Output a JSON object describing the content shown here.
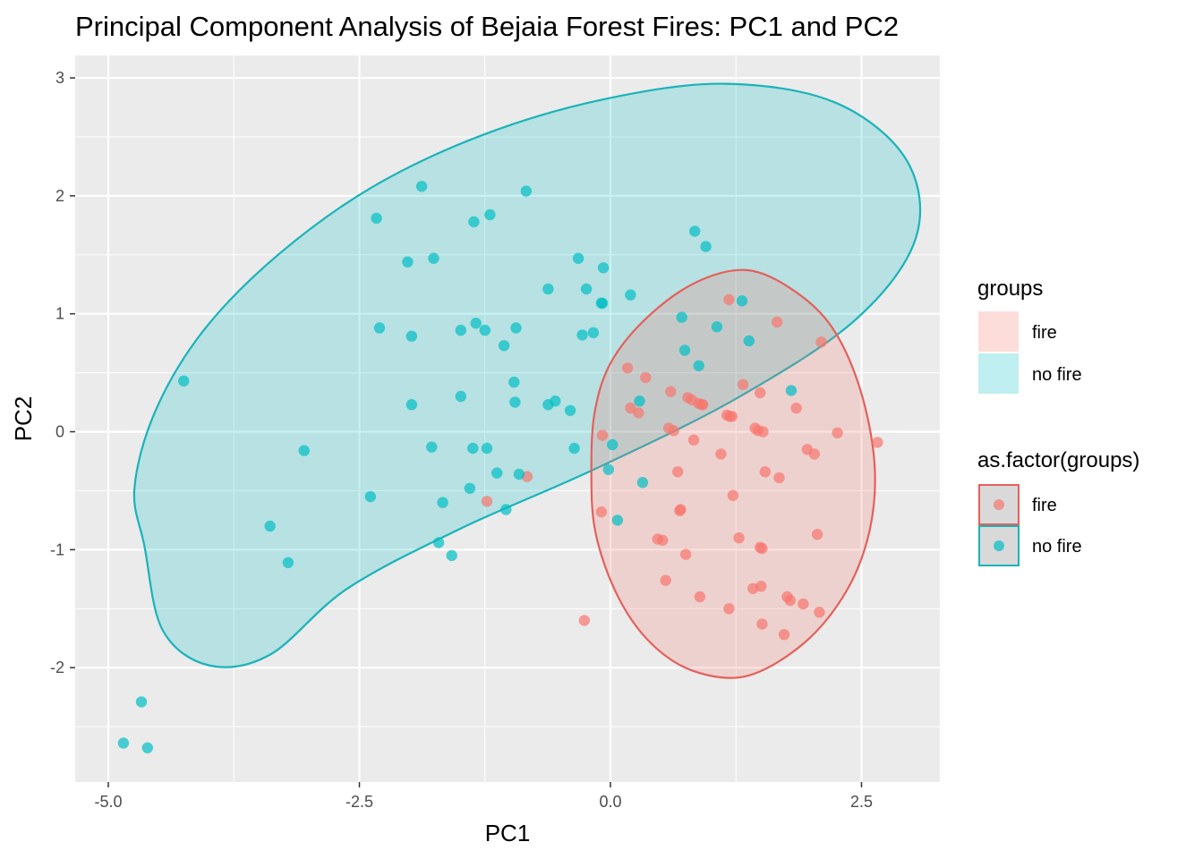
{
  "chart_data": {
    "type": "scatter",
    "title": "Principal Component Analysis of Bejaia Forest Fires: PC1 and PC2",
    "xlabel": "PC1",
    "ylabel": "PC2",
    "xlim": [
      -5.33,
      3.28
    ],
    "ylim": [
      -2.97,
      3.19
    ],
    "x_ticks": [
      -5.0,
      -2.5,
      0.0,
      2.5
    ],
    "x_tick_labels": [
      "-5.0",
      "-2.5",
      "0.0",
      "2.5"
    ],
    "y_ticks": [
      -2,
      -1,
      0,
      1,
      2,
      3
    ],
    "y_tick_labels": [
      "-2",
      "-1",
      "0",
      "1",
      "2",
      "3"
    ],
    "grid": true,
    "legend_position": "right",
    "legends": [
      {
        "title": "groups",
        "entries": [
          "fire",
          "no fire"
        ],
        "key": "fill"
      },
      {
        "title": "as.factor(groups)",
        "entries": [
          "fire",
          "no fire"
        ],
        "key": "point"
      }
    ],
    "colors": {
      "fire": "#F8766D",
      "no fire": "#00BFC4",
      "fire_line": "#E4605A",
      "nofire_line": "#1AB3B9",
      "panel": "#EBEBEB",
      "grid": "#FFFFFF"
    },
    "ellipses": [
      {
        "group": "no fire",
        "path_x": [
          -4.64,
          -4.74,
          -4.53,
          -4.05,
          -3.31,
          -2.36,
          -1.26,
          -0.06,
          1.14,
          2.24,
          2.95,
          3.04,
          2.44,
          1.27,
          -0.14,
          -1.49,
          -2.62,
          -3.39,
          -4.0,
          -4.46,
          -4.64
        ],
        "path_y": [
          -0.97,
          -0.48,
          0.18,
          0.86,
          1.5,
          2.08,
          2.52,
          2.82,
          2.95,
          2.79,
          2.3,
          1.64,
          0.95,
          0.29,
          -0.31,
          -0.82,
          -1.33,
          -1.89,
          -1.98,
          -1.68,
          -0.97
        ]
      },
      {
        "group": "fire",
        "path_x": [
          -0.19,
          -0.15,
          0.02,
          0.38,
          0.86,
          1.36,
          1.82,
          2.21,
          2.49,
          2.63,
          2.58,
          2.35,
          1.93,
          1.36,
          0.83,
          0.4,
          0.07,
          -0.15,
          -0.19
        ],
        "path_y": [
          -0.3,
          0.2,
          0.61,
          0.98,
          1.27,
          1.37,
          1.2,
          0.88,
          0.35,
          -0.28,
          -0.84,
          -1.35,
          -1.79,
          -2.07,
          -2.03,
          -1.79,
          -1.39,
          -0.85,
          -0.3
        ]
      }
    ],
    "series": [
      {
        "name": "fire",
        "points": [
          [
            -1.23,
            -0.59
          ],
          [
            -0.83,
            -0.38
          ],
          [
            -0.26,
            -1.6
          ],
          [
            -0.09,
            -0.68
          ],
          [
            -0.08,
            -0.03
          ],
          [
            0.17,
            0.54
          ],
          [
            0.2,
            0.2
          ],
          [
            0.28,
            0.16
          ],
          [
            0.35,
            0.46
          ],
          [
            0.47,
            -0.91
          ],
          [
            0.52,
            -0.92
          ],
          [
            0.55,
            -1.26
          ],
          [
            0.58,
            0.03
          ],
          [
            0.6,
            0.34
          ],
          [
            0.63,
            0.01
          ],
          [
            0.67,
            -0.34
          ],
          [
            0.69,
            -0.67
          ],
          [
            0.7,
            -0.66
          ],
          [
            0.75,
            -1.04
          ],
          [
            0.77,
            0.29
          ],
          [
            0.81,
            0.27
          ],
          [
            0.83,
            -0.07
          ],
          [
            0.88,
            0.24
          ],
          [
            0.89,
            -1.4
          ],
          [
            0.92,
            0.23
          ],
          [
            1.1,
            -0.19
          ],
          [
            1.16,
            0.14
          ],
          [
            1.18,
            -1.5
          ],
          [
            1.19,
            0.13
          ],
          [
            1.21,
            0.13
          ],
          [
            1.22,
            -0.54
          ],
          [
            1.28,
            -0.9
          ],
          [
            1.32,
            0.4
          ],
          [
            1.42,
            -1.33
          ],
          [
            1.44,
            0.03
          ],
          [
            1.47,
            0.01
          ],
          [
            1.49,
            0.33
          ],
          [
            1.5,
            -1.31
          ],
          [
            1.49,
            -0.98
          ],
          [
            1.51,
            -0.99
          ],
          [
            1.51,
            -1.63
          ],
          [
            1.52,
            0
          ],
          [
            1.54,
            -0.34
          ],
          [
            1.66,
            0.93
          ],
          [
            1.68,
            -0.39
          ],
          [
            1.73,
            -1.72
          ],
          [
            1.76,
            -1.4
          ],
          [
            1.79,
            -1.43
          ],
          [
            1.85,
            0.2
          ],
          [
            1.92,
            -1.46
          ],
          [
            1.96,
            -0.15
          ],
          [
            2.03,
            -0.19
          ],
          [
            2.06,
            -0.87
          ],
          [
            2.08,
            -1.53
          ],
          [
            2.1,
            0.76
          ],
          [
            2.26,
            -0.01
          ],
          [
            2.66,
            -0.09
          ],
          [
            1.18,
            1.12
          ],
          [
            0.91,
            0.23
          ]
        ]
      },
      {
        "name": "no fire",
        "points": [
          [
            -4.85,
            -2.64
          ],
          [
            -4.67,
            -2.29
          ],
          [
            -4.61,
            -2.68
          ],
          [
            -4.25,
            0.43
          ],
          [
            -3.39,
            -0.8
          ],
          [
            -3.21,
            -1.11
          ],
          [
            -3.05,
            -0.16
          ],
          [
            -2.39,
            -0.55
          ],
          [
            -2.33,
            1.81
          ],
          [
            -2.3,
            0.88
          ],
          [
            -2.02,
            1.44
          ],
          [
            -1.98,
            0.23
          ],
          [
            -1.98,
            0.81
          ],
          [
            -1.88,
            2.08
          ],
          [
            -1.78,
            -0.13
          ],
          [
            -1.76,
            1.47
          ],
          [
            -1.71,
            -0.94
          ],
          [
            -1.67,
            -0.6
          ],
          [
            -1.58,
            -1.05
          ],
          [
            -1.49,
            0.3
          ],
          [
            -1.49,
            0.86
          ],
          [
            -1.4,
            -0.48
          ],
          [
            -1.37,
            -0.14
          ],
          [
            -1.36,
            1.78
          ],
          [
            -1.34,
            0.92
          ],
          [
            -1.25,
            0.86
          ],
          [
            -1.23,
            -0.14
          ],
          [
            -1.2,
            1.84
          ],
          [
            -1.13,
            -0.35
          ],
          [
            -1.06,
            0.73
          ],
          [
            -1.04,
            -0.66
          ],
          [
            -0.96,
            0.42
          ],
          [
            -0.95,
            0.25
          ],
          [
            -0.94,
            0.88
          ],
          [
            -0.91,
            -0.36
          ],
          [
            -0.84,
            2.04
          ],
          [
            -0.62,
            1.21
          ],
          [
            -0.62,
            0.23
          ],
          [
            -0.55,
            0.26
          ],
          [
            -0.4,
            0.18
          ],
          [
            -0.36,
            -0.14
          ],
          [
            -0.32,
            1.47
          ],
          [
            -0.28,
            0.82
          ],
          [
            -0.24,
            1.21
          ],
          [
            -0.17,
            0.84
          ],
          [
            -0.09,
            1.09
          ],
          [
            -0.08,
            1.09
          ],
          [
            -0.07,
            1.39
          ],
          [
            -0.02,
            -0.32
          ],
          [
            0.02,
            -0.11
          ],
          [
            0.07,
            -0.75
          ],
          [
            0.2,
            1.16
          ],
          [
            0.29,
            0.26
          ],
          [
            0.32,
            -0.43
          ],
          [
            0.71,
            0.97
          ],
          [
            0.74,
            0.69
          ],
          [
            0.84,
            1.7
          ],
          [
            0.88,
            0.56
          ],
          [
            0.95,
            1.57
          ],
          [
            1.06,
            0.89
          ],
          [
            1.31,
            1.11
          ],
          [
            1.38,
            0.77
          ],
          [
            1.8,
            0.35
          ]
        ]
      }
    ]
  }
}
